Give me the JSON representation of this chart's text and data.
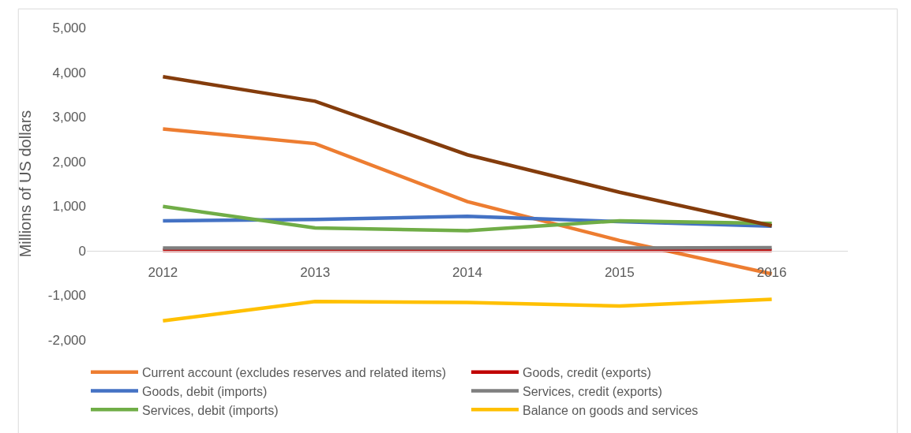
{
  "chart_data": {
    "type": "line",
    "ylabel": "Millions of US dollars",
    "categories": [
      "2012",
      "2013",
      "2014",
      "2015",
      "2016"
    ],
    "ylim": [
      -2000,
      5000
    ],
    "yticks": [
      {
        "value": -2000,
        "label": "-2,000"
      },
      {
        "value": -1000,
        "label": "-1,000"
      },
      0,
      {
        "value": 1000,
        "label": "1,000"
      },
      {
        "value": 2000,
        "label": "2,000"
      },
      {
        "value": 3000,
        "label": "3,000"
      },
      {
        "value": 4000,
        "label": "4,000"
      },
      {
        "value": 5000,
        "label": "5,000"
      }
    ],
    "grid": false,
    "legend": "bottom",
    "marker": "none",
    "line_style": "solid",
    "series": [
      {
        "name": "Current account (excludes reserves and related items)",
        "color": "#ed7d31",
        "values": [
          2730,
          2400,
          1100,
          230,
          -520
        ]
      },
      {
        "name": "Goods, credit (exports)",
        "color": "#c00000",
        "values": [
          10,
          10,
          10,
          10,
          10
        ]
      },
      {
        "name": "Goods, debit (imports)",
        "color": "#4472c4",
        "values": [
          670,
          700,
          770,
          650,
          550
        ]
      },
      {
        "name": "Services, credit (exports)",
        "color": "#7f7f7f",
        "values": [
          60,
          60,
          60,
          60,
          70
        ]
      },
      {
        "name": "Services, debit (imports)",
        "color": "#70ad47",
        "values": [
          990,
          510,
          450,
          670,
          610
        ]
      },
      {
        "name": "Balance on goods and services",
        "color": "#ffc000",
        "values": [
          -1570,
          -1140,
          -1160,
          -1240,
          -1090
        ]
      },
      {
        "color": "#843c0c",
        "values": [
          3900,
          3350,
          2150,
          1310,
          560
        ]
      }
    ]
  }
}
